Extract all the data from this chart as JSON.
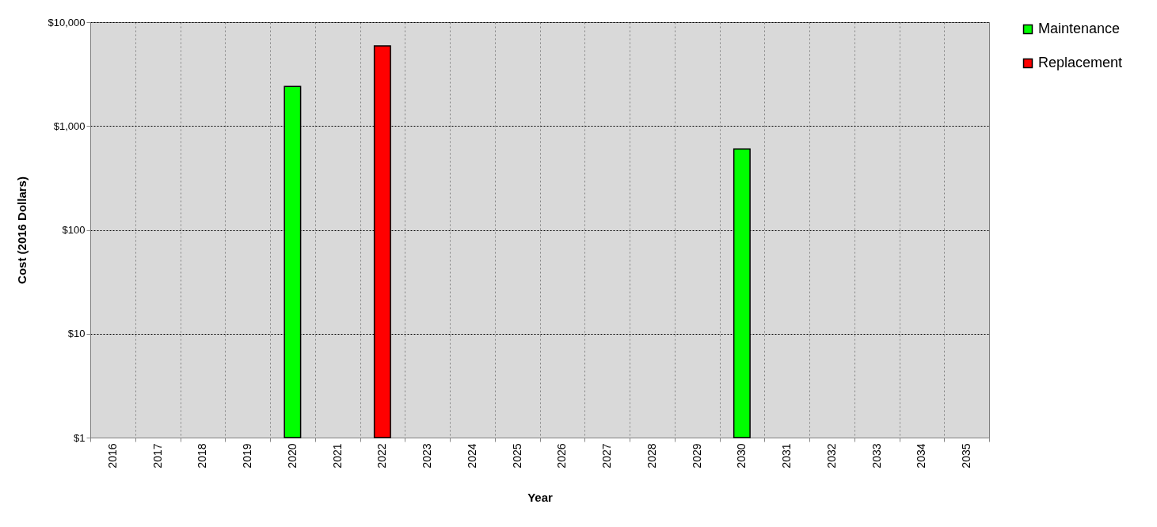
{
  "chart_data": {
    "type": "bar",
    "xlabel": "Year",
    "ylabel": "Cost (2016 Dollars)",
    "categories": [
      "2016",
      "2017",
      "2018",
      "2019",
      "2020",
      "2021",
      "2022",
      "2023",
      "2024",
      "2025",
      "2026",
      "2027",
      "2028",
      "2029",
      "2030",
      "2031",
      "2032",
      "2033",
      "2034",
      "2035"
    ],
    "series": [
      {
        "name": "Maintenance",
        "color": "#00ff00",
        "values": [
          null,
          null,
          null,
          null,
          2400,
          null,
          null,
          null,
          null,
          null,
          null,
          null,
          null,
          null,
          600,
          null,
          null,
          null,
          null,
          null
        ]
      },
      {
        "name": "Replacement",
        "color": "#ff0000",
        "values": [
          null,
          null,
          null,
          null,
          null,
          null,
          5900,
          null,
          null,
          null,
          null,
          null,
          null,
          null,
          null,
          null,
          null,
          null,
          null,
          null
        ]
      }
    ],
    "log": "y",
    "ylim": [
      1,
      10000
    ],
    "yticks": [
      {
        "value": 1,
        "label": "$1"
      },
      {
        "value": 10,
        "label": "$10"
      },
      {
        "value": 100,
        "label": "$100"
      },
      {
        "value": 1000,
        "label": "$1,000"
      },
      {
        "value": 10000,
        "label": "$10,000"
      }
    ],
    "grid": true,
    "legend": "right"
  }
}
